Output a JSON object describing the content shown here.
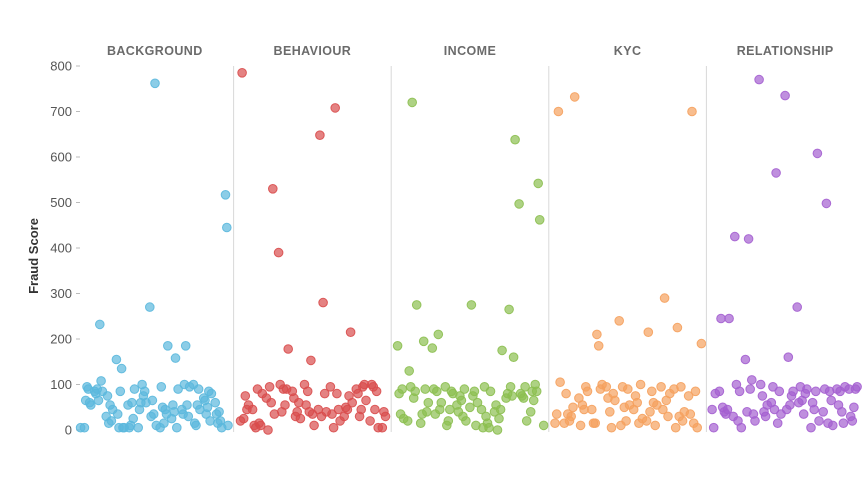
{
  "chart_data": {
    "type": "scatter",
    "ylabel": "Fraud Score",
    "ylim": [
      0,
      800
    ],
    "yticks": [
      0,
      100,
      200,
      300,
      400,
      500,
      600,
      700,
      800
    ],
    "grid": false,
    "legend": "none",
    "panels": [
      {
        "name": "BACKGROUND",
        "color": "#5bb8dd",
        "values": [
          5,
          5,
          65,
          95,
          90,
          60,
          55,
          85,
          80,
          90,
          65,
          232,
          108,
          85,
          30,
          75,
          15,
          55,
          20,
          45,
          155,
          35,
          5,
          85,
          135,
          5,
          5,
          55,
          5,
          10,
          60,
          25,
          90,
          5,
          45,
          60,
          100,
          75,
          85,
          60,
          270,
          30,
          65,
          35,
          762,
          10,
          5,
          95,
          50,
          15,
          45,
          35,
          185,
          25,
          55,
          40,
          158,
          5,
          90,
          45,
          35,
          100,
          185,
          55,
          30,
          95,
          100,
          15,
          10,
          55,
          90,
          45,
          70,
          65,
          35,
          50,
          85,
          20,
          80,
          60,
          35,
          15,
          40,
          20,
          5,
          517,
          445,
          10
        ]
      },
      {
        "name": "BEHAVIOUR",
        "color": "#d94d4d",
        "values": [
          20,
          785,
          25,
          75,
          45,
          55,
          45,
          10,
          5,
          90,
          15,
          10,
          80,
          70,
          0,
          95,
          60,
          530,
          35,
          390,
          100,
          40,
          90,
          55,
          90,
          178,
          85,
          70,
          30,
          40,
          60,
          25,
          100,
          55,
          85,
          40,
          153,
          35,
          10,
          45,
          648,
          30,
          280,
          80,
          40,
          95,
          35,
          5,
          708,
          80,
          45,
          20,
          30,
          50,
          45,
          75,
          215,
          60,
          90,
          80,
          30,
          45,
          95,
          100,
          65,
          20,
          100,
          95,
          45,
          85,
          5,
          5,
          40,
          30
        ]
      },
      {
        "name": "INCOME",
        "color": "#8cbf50",
        "values": [
          185,
          80,
          35,
          90,
          25,
          20,
          130,
          95,
          720,
          70,
          85,
          275,
          15,
          35,
          195,
          90,
          40,
          60,
          180,
          90,
          35,
          85,
          210,
          45,
          60,
          95,
          10,
          20,
          45,
          85,
          80,
          55,
          40,
          75,
          65,
          30,
          90,
          20,
          50,
          275,
          75,
          85,
          10,
          60,
          45,
          5,
          95,
          30,
          15,
          5,
          85,
          40,
          55,
          0,
          25,
          45,
          175,
          70,
          80,
          265,
          95,
          75,
          160,
          638,
          497,
          80,
          75,
          70,
          95,
          20,
          40,
          85,
          65,
          100,
          85,
          542,
          462,
          10
        ]
      },
      {
        "name": "KYC",
        "color": "#f5a15e",
        "values": [
          15,
          35,
          700,
          105,
          15,
          80,
          35,
          20,
          30,
          50,
          732,
          70,
          10,
          55,
          45,
          95,
          85,
          45,
          15,
          15,
          210,
          185,
          90,
          100,
          95,
          70,
          40,
          5,
          80,
          65,
          240,
          10,
          95,
          50,
          20,
          90,
          55,
          45,
          75,
          60,
          15,
          100,
          25,
          20,
          215,
          40,
          85,
          60,
          10,
          55,
          95,
          45,
          290,
          65,
          30,
          80,
          90,
          5,
          225,
          30,
          95,
          20,
          40,
          75,
          35,
          700,
          15,
          85,
          5,
          190
        ]
      },
      {
        "name": "RELATIONSHIP",
        "color": "#a45fd0",
        "values": [
          45,
          5,
          80,
          85,
          245,
          50,
          40,
          35,
          45,
          245,
          30,
          425,
          100,
          20,
          85,
          5,
          155,
          40,
          420,
          90,
          110,
          35,
          20,
          770,
          100,
          75,
          40,
          30,
          55,
          60,
          95,
          45,
          565,
          15,
          85,
          35,
          735,
          45,
          160,
          55,
          75,
          85,
          270,
          60,
          95,
          65,
          35,
          80,
          90,
          5,
          60,
          45,
          85,
          608,
          20,
          40,
          90,
          498,
          15,
          85,
          65,
          10,
          90,
          55,
          85,
          40,
          15,
          95,
          90,
          30,
          20,
          50,
          90,
          95
        ]
      }
    ]
  }
}
